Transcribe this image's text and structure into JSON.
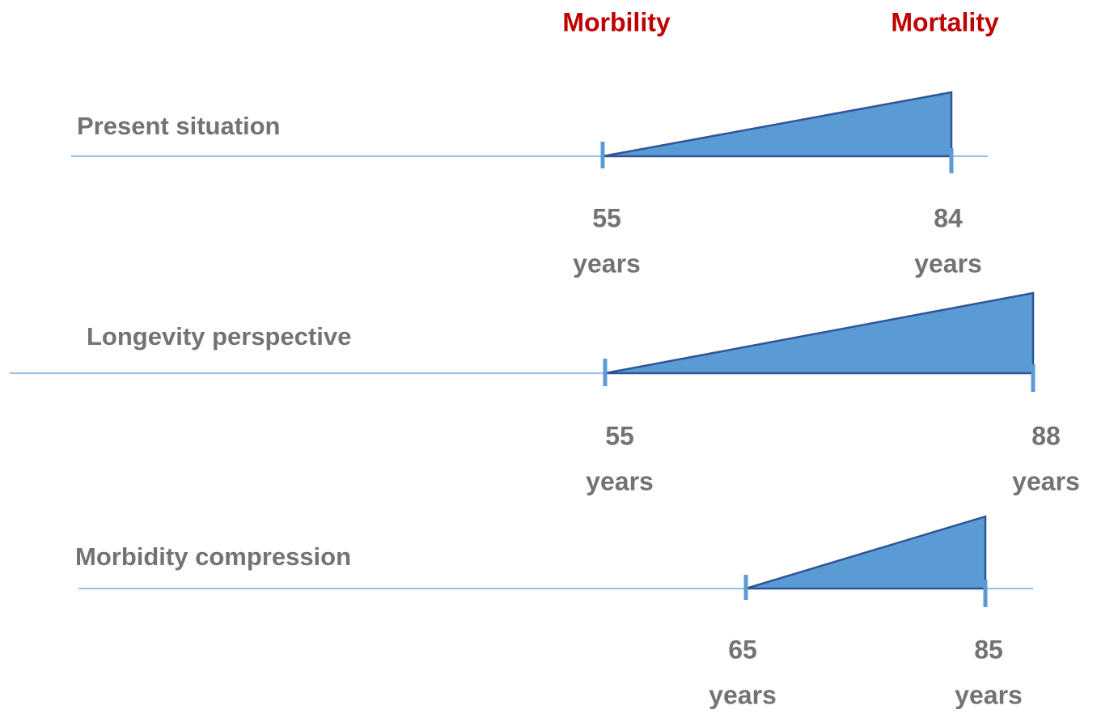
{
  "header": {
    "left": "Morbility",
    "right": "Mortality"
  },
  "rows": [
    {
      "label": "Present situation",
      "start": "55",
      "start_unit": "years",
      "end": "84",
      "end_unit": "years"
    },
    {
      "label": "Longevity perspective",
      "start": "55",
      "start_unit": "years",
      "end": "88",
      "end_unit": "years"
    },
    {
      "label": "Morbidity compression",
      "start": "65",
      "start_unit": "years",
      "end": "85",
      "end_unit": "years"
    }
  ]
}
